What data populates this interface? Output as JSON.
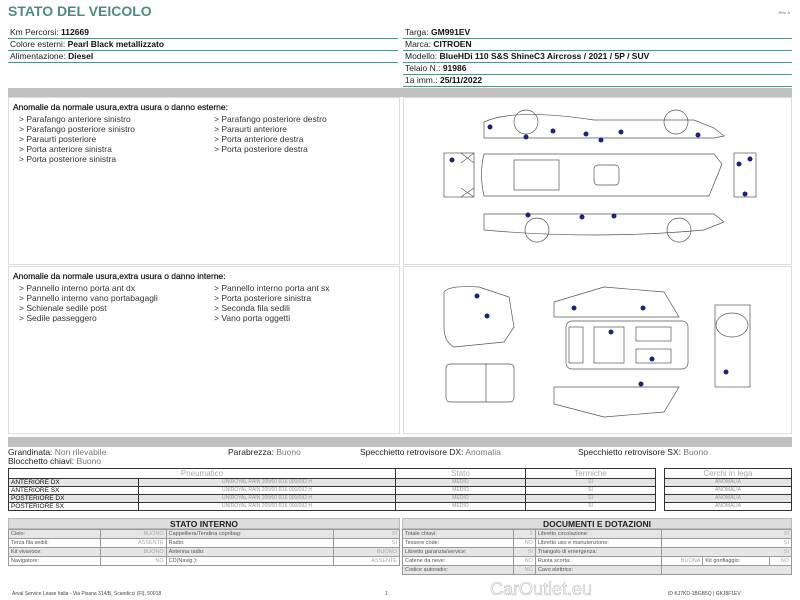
{
  "header": {
    "title": "STATO DEL VEICOLO",
    "rev": "Rev. A"
  },
  "vehicle_left": [
    {
      "label": "Km Percorsi:",
      "value": "112669"
    },
    {
      "label": "Colore esterni:",
      "value": "Pearl Black metallizzato"
    },
    {
      "label": "Alimentazione:",
      "value": "Diesel"
    }
  ],
  "vehicle_right": [
    {
      "label": "Targa:",
      "value": "GM991EV"
    },
    {
      "label": "Marca:",
      "value": "CITROEN"
    },
    {
      "label": "Modello:",
      "value": "BlueHDi 110 S&S ShineC3 Aircross / 2021 / 5P / SUV"
    },
    {
      "label": "Telaio N.:",
      "value": "91986"
    },
    {
      "label": "1a imm.:",
      "value": "25/11/2022"
    }
  ],
  "exterior": {
    "title": "Anomalie da normale usura,extra usura o danno esterne:",
    "items": [
      "> Parafango anteriore sinistro",
      "> Parafango posteriore destro",
      "> Parafango posteriore sinistro",
      "> Paraurti anteriore",
      "> Paraurti posteriore",
      "> Porta anteriore destra",
      "> Porta anteriore sinistra",
      "> Porta posteriore destra",
      "> Porta posteriore sinistra"
    ]
  },
  "interior": {
    "title": "Anomalie da normale usura,extra usura o danno interne:",
    "items": [
      "> Pannello interno porta ant dx",
      "> Pannello interno porta ant sx",
      "> Pannello interno vano portabagagli",
      "> Porta posteriore sinistra",
      "> Schienale sedile post",
      "> Seconda fila sedili",
      "> Sedile passeggero",
      "> Vano porta oggetti"
    ]
  },
  "checks": [
    {
      "label": "Grandinata:",
      "value": "Non rilevabile"
    },
    {
      "label": "Parabrezza:",
      "value": "Buono"
    },
    {
      "label": "Specchietto retrovisore DX:",
      "value": "Anomalia"
    },
    {
      "label": "Specchietto retrovisore SX:",
      "value": "Buono"
    },
    {
      "label": "Blocchetto chiavi:",
      "value": "Buono"
    }
  ],
  "tires": {
    "headers": [
      "Pneumatico",
      "Stato",
      "Termiche",
      "Cerchi in lega"
    ],
    "rows": [
      {
        "pos": "ANTERIORE DX",
        "tire": "UNIROYAL RAIN 205/60 R16 000/092 H",
        "stato": "MEDIO",
        "termiche": "SI",
        "cerchi": "ANOMALIA"
      },
      {
        "pos": "ANTERIORE SX",
        "tire": "UNIROYAL RAIN 205/60 R16 000/092 H",
        "stato": "MEDIO",
        "termiche": "SI",
        "cerchi": "ANOMALIA"
      },
      {
        "pos": "POSTERIORE DX",
        "tire": "UNIROYAL RAIN 205/60 R16 000/092 H",
        "stato": "MEDIO",
        "termiche": "SI",
        "cerchi": "ANOMALIA"
      },
      {
        "pos": "POSTERIORE SX",
        "tire": "UNIROYAL RAIN 205/60 R16 000/092 H",
        "stato": "MEDIO",
        "termiche": "SI",
        "cerchi": "ANOMALIA"
      }
    ]
  },
  "stato_interno": {
    "title": "STATO INTERNO",
    "rows": [
      [
        "Cielo:",
        "BUONO",
        "Cappelliera/Tendina copribag:",
        "SI"
      ],
      [
        "Terza fila sedili:",
        "ASSENTE",
        "Radio:",
        "SI"
      ],
      [
        "Kit vivavoce:",
        "BUONO",
        "Antenna radio:",
        "BUONO"
      ],
      [
        "Navigatore:",
        "NO",
        "CD(Navig.):",
        "ASSENTE"
      ]
    ]
  },
  "documenti": {
    "title": "DOCUMENTI E DOTAZIONI",
    "rows": [
      [
        "Totale chiavi:",
        "2",
        "Libretto circolazione:",
        "SI"
      ],
      [
        "Tessere code:",
        "NO",
        "Libretto uso e manutenzione:",
        "SI"
      ],
      [
        "Libretto garanzia/service:",
        "SI",
        "Triangolo di emergenza:",
        "SI"
      ],
      [
        "Catene da neve:",
        "NO",
        "Ruota scorta:",
        "BUONA",
        "Kit gonfiaggio:",
        "NO"
      ],
      [
        "Codice autoradio:",
        "NO",
        "Cavo elettrico:",
        ""
      ]
    ]
  },
  "footer": {
    "address": "Arval Service Lease Italia - Via Pisana 314/B, Scandicci (FI), 50018",
    "page": "1",
    "watermark": "CarOutlet.eu",
    "id": "ID KJ7KD-1BGB5Q | GKJ8F1EV"
  },
  "colors": {
    "accent": "#4e8c82",
    "damage_dot": "#1a237e"
  }
}
